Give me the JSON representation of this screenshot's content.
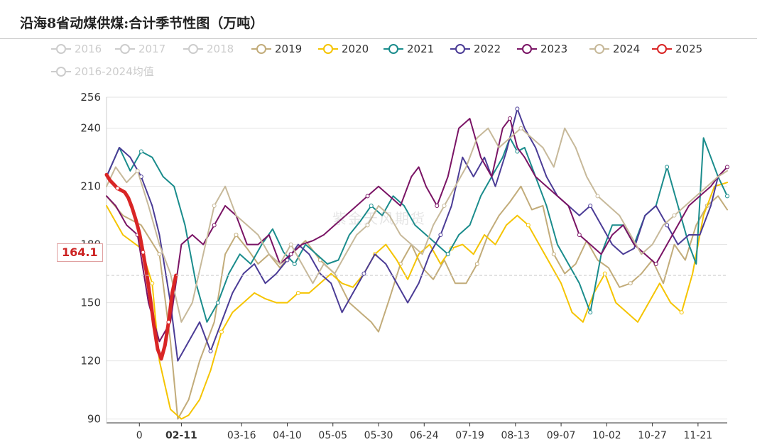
{
  "title": "沿海8省动煤供煤:合计季节性图（万吨）",
  "watermark": "紫金天风期货",
  "pointer_label": "164.1",
  "chart_data": {
    "type": "line",
    "title": "沿海8省动煤供煤:合计季节性图（万吨）",
    "ylim": [
      88,
      256
    ],
    "yticks": [
      90,
      120,
      150,
      180,
      210,
      240,
      256
    ],
    "xlim": [
      1,
      341
    ],
    "xticks": [
      {
        "label": "0",
        "day": 19
      },
      {
        "label": "02-11",
        "day": 42,
        "highlight": true
      },
      {
        "label": "03-16",
        "day": 75
      },
      {
        "label": "04-10",
        "day": 100
      },
      {
        "label": "05-05",
        "day": 125
      },
      {
        "label": "05-30",
        "day": 150
      },
      {
        "label": "06-24",
        "day": 175
      },
      {
        "label": "07-19",
        "day": 200
      },
      {
        "label": "08-13",
        "day": 225
      },
      {
        "label": "09-07",
        "day": 250
      },
      {
        "label": "10-02",
        "day": 275
      },
      {
        "label": "10-27",
        "day": 300
      },
      {
        "label": "11-21",
        "day": 325
      }
    ],
    "pointer_value": 164.1,
    "series": [
      {
        "name": "2016",
        "color": "#cccccc",
        "hidden": true,
        "values": []
      },
      {
        "name": "2017",
        "color": "#cccccc",
        "hidden": true,
        "values": []
      },
      {
        "name": "2018",
        "color": "#cccccc",
        "hidden": true,
        "values": []
      },
      {
        "name": "2019",
        "color": "#c2ac7a",
        "hidden": false,
        "x": [
          1,
          10,
          20,
          30,
          36,
          40,
          46,
          52,
          60,
          66,
          72,
          78,
          84,
          90,
          96,
          102,
          110,
          118,
          126,
          134,
          140,
          146,
          150,
          156,
          162,
          168,
          174,
          180,
          186,
          192,
          198,
          204,
          210,
          216,
          222,
          228,
          234,
          240,
          246,
          252,
          258,
          264,
          270,
          276,
          282,
          288,
          294,
          300,
          306,
          312,
          318,
          324,
          330,
          336,
          341
        ],
        "values": [
          205,
          195,
          190,
          175,
          130,
          90,
          100,
          120,
          140,
          175,
          185,
          178,
          170,
          175,
          168,
          175,
          182,
          172,
          165,
          150,
          145,
          140,
          135,
          152,
          170,
          180,
          168,
          162,
          172,
          160,
          160,
          170,
          185,
          195,
          202,
          210,
          198,
          200,
          175,
          165,
          170,
          182,
          172,
          168,
          158,
          160,
          165,
          172,
          160,
          180,
          172,
          190,
          200,
          205,
          198
        ]
      },
      {
        "name": "2020",
        "color": "#f5c400",
        "hidden": false,
        "x": [
          1,
          10,
          20,
          26,
          30,
          36,
          42,
          46,
          52,
          58,
          64,
          70,
          76,
          82,
          88,
          94,
          100,
          106,
          112,
          118,
          124,
          130,
          136,
          142,
          148,
          154,
          160,
          166,
          172,
          178,
          184,
          190,
          196,
          202,
          208,
          214,
          220,
          226,
          232,
          238,
          244,
          250,
          256,
          262,
          268,
          274,
          280,
          286,
          292,
          298,
          304,
          310,
          316,
          322,
          328,
          334,
          341
        ],
        "values": [
          200,
          185,
          178,
          160,
          120,
          95,
          90,
          92,
          100,
          115,
          135,
          145,
          150,
          155,
          152,
          150,
          150,
          155,
          155,
          160,
          165,
          160,
          158,
          165,
          175,
          180,
          172,
          162,
          175,
          180,
          170,
          178,
          180,
          175,
          185,
          180,
          190,
          195,
          190,
          180,
          170,
          160,
          145,
          140,
          155,
          165,
          150,
          145,
          140,
          150,
          160,
          150,
          145,
          165,
          195,
          210,
          212
        ]
      },
      {
        "name": "2021",
        "color": "#1a8c8c",
        "hidden": false,
        "x": [
          1,
          8,
          14,
          20,
          26,
          32,
          38,
          44,
          50,
          56,
          62,
          68,
          74,
          80,
          86,
          92,
          98,
          104,
          110,
          116,
          122,
          128,
          134,
          140,
          146,
          152,
          158,
          164,
          170,
          176,
          182,
          188,
          194,
          200,
          206,
          212,
          218,
          222,
          226,
          230,
          236,
          242,
          248,
          254,
          260,
          266,
          272,
          278,
          284,
          290,
          296,
          302,
          308,
          314,
          320,
          324,
          328,
          332,
          336,
          341
        ],
        "values": [
          215,
          230,
          218,
          228,
          225,
          215,
          210,
          190,
          160,
          140,
          150,
          165,
          175,
          170,
          180,
          188,
          176,
          170,
          180,
          175,
          170,
          172,
          185,
          192,
          200,
          195,
          205,
          200,
          190,
          185,
          180,
          175,
          185,
          190,
          205,
          215,
          225,
          235,
          228,
          230,
          215,
          200,
          180,
          170,
          160,
          145,
          175,
          190,
          190,
          180,
          195,
          200,
          220,
          200,
          180,
          170,
          235,
          225,
          215,
          205
        ]
      },
      {
        "name": "2022",
        "color": "#4b3c96",
        "hidden": false,
        "x": [
          1,
          8,
          14,
          20,
          26,
          30,
          36,
          40,
          46,
          52,
          58,
          64,
          70,
          76,
          82,
          88,
          94,
          100,
          106,
          112,
          118,
          124,
          130,
          136,
          142,
          148,
          154,
          160,
          166,
          172,
          178,
          184,
          190,
          196,
          202,
          208,
          214,
          220,
          226,
          230,
          236,
          242,
          248,
          254,
          260,
          266,
          272,
          278,
          284,
          290,
          296,
          302,
          308,
          314,
          320,
          326,
          332,
          336,
          341
        ],
        "values": [
          215,
          230,
          225,
          215,
          200,
          185,
          150,
          120,
          130,
          140,
          125,
          140,
          155,
          165,
          170,
          160,
          165,
          172,
          180,
          175,
          165,
          160,
          145,
          155,
          165,
          175,
          170,
          160,
          150,
          160,
          175,
          185,
          200,
          225,
          215,
          225,
          210,
          228,
          250,
          240,
          230,
          215,
          205,
          200,
          195,
          200,
          190,
          180,
          175,
          178,
          195,
          200,
          190,
          180,
          185,
          185,
          200,
          215,
          220
        ]
      },
      {
        "name": "2023",
        "color": "#7a1465",
        "hidden": false,
        "x": [
          1,
          6,
          12,
          18,
          24,
          30,
          36,
          42,
          48,
          54,
          60,
          66,
          72,
          78,
          84,
          90,
          96,
          102,
          108,
          114,
          120,
          126,
          132,
          138,
          144,
          150,
          156,
          162,
          168,
          172,
          176,
          182,
          188,
          194,
          200,
          206,
          212,
          218,
          222,
          226,
          230,
          236,
          242,
          248,
          254,
          260,
          266,
          272,
          278,
          284,
          290,
          296,
          302,
          308,
          314,
          320,
          326,
          332,
          336,
          341
        ],
        "values": [
          205,
          200,
          190,
          185,
          150,
          130,
          140,
          180,
          185,
          180,
          190,
          200,
          195,
          180,
          180,
          185,
          170,
          175,
          180,
          182,
          185,
          190,
          195,
          200,
          205,
          210,
          205,
          200,
          215,
          220,
          210,
          200,
          215,
          240,
          245,
          225,
          215,
          240,
          245,
          230,
          225,
          215,
          210,
          205,
          200,
          185,
          180,
          175,
          185,
          190,
          180,
          175,
          170,
          180,
          190,
          200,
          205,
          210,
          215,
          220
        ]
      },
      {
        "name": "2024",
        "color": "#c7b99a",
        "hidden": false,
        "x": [
          1,
          6,
          12,
          18,
          24,
          30,
          36,
          42,
          48,
          54,
          60,
          66,
          72,
          78,
          84,
          90,
          96,
          102,
          108,
          114,
          120,
          126,
          132,
          138,
          144,
          150,
          156,
          162,
          168,
          174,
          180,
          186,
          192,
          198,
          204,
          210,
          216,
          222,
          228,
          234,
          240,
          246,
          252,
          258,
          264,
          270,
          276,
          282,
          288,
          294,
          300,
          306,
          312,
          318,
          324,
          330,
          336,
          341
        ],
        "values": [
          210,
          220,
          212,
          218,
          200,
          180,
          165,
          140,
          150,
          175,
          200,
          210,
          195,
          190,
          185,
          175,
          170,
          180,
          170,
          160,
          170,
          165,
          175,
          185,
          190,
          200,
          195,
          185,
          180,
          175,
          190,
          200,
          210,
          220,
          235,
          240,
          230,
          235,
          240,
          235,
          230,
          220,
          240,
          230,
          215,
          205,
          200,
          195,
          185,
          175,
          180,
          190,
          195,
          200,
          205,
          210,
          215,
          218
        ]
      },
      {
        "name": "2025",
        "color": "#d92525",
        "hidden": false,
        "bold": true,
        "x": [
          1,
          3,
          5,
          7,
          9,
          11,
          13,
          15,
          17,
          19,
          21,
          23,
          25,
          27,
          29,
          31,
          33,
          35,
          37,
          39
        ],
        "values": [
          216,
          213,
          211,
          209,
          208,
          207,
          204,
          199,
          193,
          186,
          176,
          165,
          152,
          138,
          126,
          121,
          128,
          140,
          155,
          164.1
        ]
      },
      {
        "name": "2016-2024均值",
        "color": "#cccccc",
        "hidden": true,
        "values": []
      }
    ]
  }
}
